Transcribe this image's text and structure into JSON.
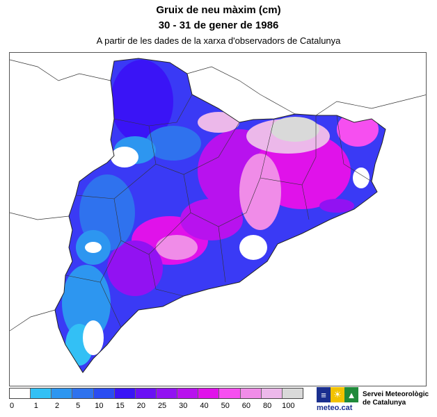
{
  "header": {
    "title": "Gruix de neu màxim (cm)",
    "period": "30 - 31 de gener de 1986",
    "subtitle": "A partir de les dades de la xarxa d'observadors de Catalunya"
  },
  "legend": {
    "ticks": [
      "0",
      "1",
      "2",
      "5",
      "10",
      "15",
      "20",
      "25",
      "30",
      "40",
      "50",
      "60",
      "80",
      "100"
    ],
    "colors": [
      "#ffffff",
      "#33c0f5",
      "#2d96f0",
      "#2f72ee",
      "#2a4cf2",
      "#3a14f6",
      "#6a10f4",
      "#9212f2",
      "#b812ee",
      "#e012ea",
      "#f64ff0",
      "#f08ce8",
      "#ecb8ea",
      "#d9d9d9"
    ]
  },
  "logo": {
    "brand": "meteo.cat",
    "icon_names": [
      "menu-bars-icon",
      "sun-icon",
      "mountain-icon"
    ]
  },
  "organization": {
    "line1": "Servei Meteorològic",
    "line2": "de Catalunya"
  }
}
